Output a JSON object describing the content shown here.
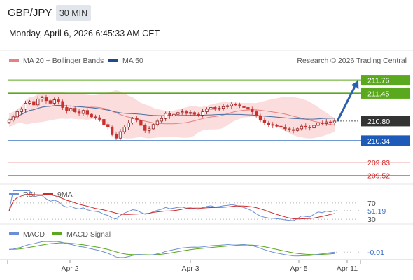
{
  "header": {
    "symbol": "GBP/JPY",
    "timeframe": "30 MIN",
    "datetime": "Monday, April 6, 2026 6:45:33 AM CET"
  },
  "legend": {
    "ma20_bb": "MA 20 + Bollinger Bands",
    "ma50": "MA 50",
    "credit": "Research © 2026 Trading Central",
    "rsi": "RSI",
    "rsi_ma": "9MA",
    "macd": "MACD",
    "macd_signal": "MACD Signal"
  },
  "colors": {
    "green": "#5aa81e",
    "blue": "#1e5bb8",
    "red": "#d22828",
    "dark": "#333333",
    "bull_candle": "#8b1a1a",
    "bear_candle": "#c93030",
    "bb_fill": "#fad2d2",
    "ma50": "#4a6fa5",
    "ma20": "#e88080",
    "rsi_line": "#6b8fd6",
    "macd_line": "#6b8fd6",
    "macd_signal_line": "#5aa81e"
  },
  "chart_data": [
    {
      "type": "candlestick",
      "panel": "price",
      "xlabels": [
        "Apr 2",
        "Apr 3",
        "Apr 5",
        "Apr 11"
      ],
      "ylim": [
        209.4,
        212.0
      ],
      "current_price": 210.8,
      "levels": [
        {
          "label": "211.76",
          "value": 211.76,
          "style": "resistance"
        },
        {
          "label": "211.45",
          "value": 211.45,
          "style": "resistance"
        },
        {
          "label": "210.80",
          "value": 210.8,
          "style": "current"
        },
        {
          "label": "210.34",
          "value": 210.34,
          "style": "pivot"
        },
        {
          "label": "209.83",
          "value": 209.83,
          "style": "support"
        },
        {
          "label": "209.52",
          "value": 209.52,
          "style": "support"
        }
      ],
      "forecast_arrow": {
        "from": 210.8,
        "to": 211.76
      },
      "closes": [
        210.82,
        210.9,
        211.02,
        211.08,
        211.22,
        211.26,
        211.18,
        211.32,
        211.35,
        211.28,
        211.22,
        211.3,
        211.26,
        211.12,
        211.04,
        211.1,
        211.02,
        210.98,
        211.05,
        210.96,
        210.9,
        210.88,
        210.84,
        210.72,
        210.66,
        210.48,
        210.4,
        210.55,
        210.66,
        210.76,
        210.86,
        210.82,
        210.7,
        210.58,
        210.62,
        210.72,
        210.8,
        210.86,
        210.98,
        210.92,
        210.96,
        211.0,
        211.02,
        210.98,
        211.0,
        210.96,
        210.94,
        211.02,
        211.08,
        211.12,
        211.08,
        211.1,
        211.14,
        211.16,
        211.2,
        211.18,
        211.15,
        211.12,
        211.08,
        211.02,
        210.92,
        210.82,
        210.76,
        210.72,
        210.7,
        210.68,
        210.66,
        210.62,
        210.6,
        210.58,
        210.62,
        210.68,
        210.66,
        210.64,
        210.7,
        210.76,
        210.74,
        210.78,
        210.76,
        210.8
      ]
    },
    {
      "type": "line",
      "panel": "rsi",
      "series": [
        {
          "name": "RSI"
        },
        {
          "name": "9MA"
        }
      ],
      "levels": [
        {
          "label": "70",
          "value": 70
        },
        {
          "label": "30",
          "value": 30
        }
      ],
      "last_value_label": "51.19",
      "last_value": 51.19,
      "ylim": [
        25,
        75
      ]
    },
    {
      "type": "line",
      "panel": "macd",
      "series": [
        {
          "name": "MACD"
        },
        {
          "name": "MACD Signal"
        }
      ],
      "last_value_label": "-0.01",
      "last_value": -0.01
    }
  ]
}
